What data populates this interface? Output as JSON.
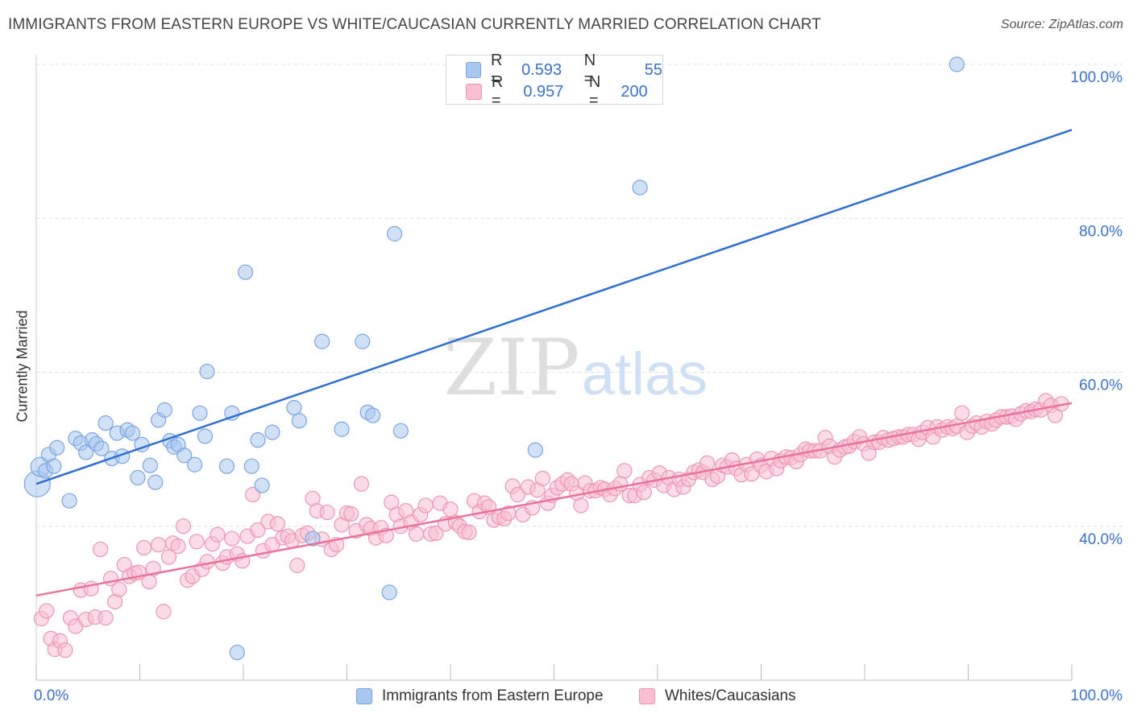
{
  "header": {
    "title": "IMMIGRANTS FROM EASTERN EUROPE VS WHITE/CAUCASIAN CURRENTLY MARRIED CORRELATION CHART",
    "source": "Source: ZipAtlas.com"
  },
  "watermark": {
    "zip": "ZIP",
    "atlas": "atlas"
  },
  "stats": [
    {
      "r_label": "R =",
      "r_value": "0.593",
      "n_label": "N =",
      "n_value": "55",
      "color": "#8fb4e8"
    },
    {
      "r_label": "R =",
      "r_value": "0.957",
      "n_label": "N =",
      "n_value": "200",
      "color": "#f4a7c0"
    }
  ],
  "colors": {
    "blue_fill": "#a9c6ef",
    "blue_stroke": "#7aa5e0",
    "blue_line": "#2f6fd1",
    "pink_fill": "#f8bfd2",
    "pink_stroke": "#ee95b3",
    "pink_line": "#e8739d",
    "tick_label": "#3a73c9",
    "grid": "#dddddd"
  },
  "chart_data": {
    "type": "scatter",
    "title": "IMMIGRANTS FROM EASTERN EUROPE VS WHITE/CAUCASIAN CURRENTLY MARRIED CORRELATION CHART",
    "xlabel": "",
    "ylabel": "Currently Married",
    "xlim": [
      0,
      100
    ],
    "ylim": [
      20,
      100
    ],
    "x_tick_labels": [
      "0.0%",
      "100.0%"
    ],
    "y_ticks": [
      40,
      60,
      80,
      100
    ],
    "y_tick_labels": [
      "40.0%",
      "60.0%",
      "80.0%",
      "100.0%"
    ],
    "grid": "horizontal dashed",
    "legend_position": "bottom",
    "series": [
      {
        "name": "Immigrants from Eastern Europe",
        "color": "#a9c6ef",
        "trend": [
          [
            0,
            45.5
          ],
          [
            100,
            91.5
          ]
        ],
        "points": [
          [
            0.1,
            45.5
          ],
          [
            0.4,
            47.7
          ],
          [
            0.9,
            47.2
          ],
          [
            1.2,
            49.3
          ],
          [
            1.7,
            47.8
          ],
          [
            2.0,
            50.2
          ],
          [
            3.2,
            43.3
          ],
          [
            3.8,
            51.4
          ],
          [
            4.3,
            50.8
          ],
          [
            4.8,
            49.6
          ],
          [
            5.4,
            51.2
          ],
          [
            5.8,
            50.7
          ],
          [
            6.3,
            50.1
          ],
          [
            6.7,
            53.4
          ],
          [
            7.3,
            48.8
          ],
          [
            7.8,
            52.1
          ],
          [
            8.3,
            49.1
          ],
          [
            8.8,
            52.5
          ],
          [
            9.3,
            52.1
          ],
          [
            9.8,
            46.3
          ],
          [
            10.2,
            50.6
          ],
          [
            11.0,
            47.9
          ],
          [
            11.5,
            45.7
          ],
          [
            11.8,
            53.8
          ],
          [
            12.4,
            55.1
          ],
          [
            12.9,
            51.1
          ],
          [
            13.3,
            50.3
          ],
          [
            13.7,
            50.6
          ],
          [
            14.3,
            49.2
          ],
          [
            15.3,
            48.0
          ],
          [
            15.8,
            54.7
          ],
          [
            16.3,
            51.7
          ],
          [
            16.5,
            60.1
          ],
          [
            18.4,
            47.8
          ],
          [
            18.9,
            54.7
          ],
          [
            19.4,
            23.6
          ],
          [
            20.2,
            73.0
          ],
          [
            20.8,
            47.8
          ],
          [
            21.4,
            51.2
          ],
          [
            21.8,
            45.3
          ],
          [
            22.8,
            52.2
          ],
          [
            24.9,
            55.4
          ],
          [
            25.4,
            53.7
          ],
          [
            26.7,
            38.4
          ],
          [
            27.6,
            64.0
          ],
          [
            29.5,
            52.6
          ],
          [
            31.5,
            64.0
          ],
          [
            32.0,
            54.8
          ],
          [
            32.5,
            54.4
          ],
          [
            34.1,
            31.4
          ],
          [
            34.6,
            78.0
          ],
          [
            35.2,
            52.4
          ],
          [
            48.2,
            49.9
          ],
          [
            58.3,
            84.0
          ],
          [
            88.9,
            100.0
          ]
        ]
      },
      {
        "name": "Whites/Caucasians",
        "color": "#f8bfd2",
        "trend": [
          [
            0,
            31.0
          ],
          [
            100,
            56.0
          ]
        ],
        "points": [
          [
            0.5,
            28.0
          ],
          [
            1.0,
            29.0
          ],
          [
            1.4,
            25.4
          ],
          [
            1.8,
            24.0
          ],
          [
            2.3,
            25.1
          ],
          [
            2.8,
            23.9
          ],
          [
            3.3,
            28.1
          ],
          [
            3.8,
            27.0
          ],
          [
            4.3,
            31.7
          ],
          [
            4.8,
            27.9
          ],
          [
            5.3,
            31.9
          ],
          [
            5.7,
            28.2
          ],
          [
            6.2,
            37.0
          ],
          [
            6.7,
            28.1
          ],
          [
            7.2,
            33.2
          ],
          [
            7.6,
            30.2
          ],
          [
            8.0,
            31.8
          ],
          [
            8.5,
            35.0
          ],
          [
            9.0,
            33.5
          ],
          [
            9.5,
            33.9
          ],
          [
            9.9,
            34.0
          ],
          [
            10.4,
            37.2
          ],
          [
            10.9,
            32.8
          ],
          [
            11.3,
            34.5
          ],
          [
            11.8,
            37.6
          ],
          [
            12.3,
            28.9
          ],
          [
            12.8,
            36.0
          ],
          [
            13.2,
            37.8
          ],
          [
            13.7,
            37.4
          ],
          [
            14.2,
            40.0
          ],
          [
            14.6,
            33.0
          ],
          [
            15.1,
            33.5
          ],
          [
            15.5,
            38.0
          ],
          [
            16.0,
            34.4
          ],
          [
            16.5,
            35.4
          ],
          [
            17.0,
            37.7
          ],
          [
            17.5,
            38.9
          ],
          [
            18.0,
            35.2
          ],
          [
            18.4,
            36.0
          ],
          [
            18.9,
            38.4
          ],
          [
            19.4,
            36.4
          ],
          [
            19.9,
            35.5
          ],
          [
            20.4,
            38.7
          ],
          [
            20.9,
            44.1
          ],
          [
            21.4,
            39.5
          ],
          [
            21.9,
            36.8
          ],
          [
            22.4,
            40.6
          ],
          [
            22.8,
            37.6
          ],
          [
            23.3,
            40.3
          ],
          [
            23.8,
            38.5
          ],
          [
            24.3,
            38.7
          ],
          [
            24.7,
            38.1
          ],
          [
            25.2,
            34.9
          ],
          [
            25.7,
            38.8
          ],
          [
            26.2,
            39.1
          ],
          [
            26.7,
            43.6
          ],
          [
            27.1,
            42.0
          ],
          [
            27.6,
            38.3
          ],
          [
            28.1,
            41.8
          ],
          [
            28.5,
            37.0
          ],
          [
            29.0,
            37.6
          ],
          [
            29.5,
            40.2
          ],
          [
            30.0,
            41.7
          ],
          [
            30.4,
            41.6
          ],
          [
            30.9,
            39.4
          ],
          [
            31.4,
            45.5
          ],
          [
            31.9,
            40.2
          ],
          [
            32.3,
            39.7
          ],
          [
            32.8,
            38.5
          ],
          [
            33.3,
            39.8
          ],
          [
            33.8,
            38.8
          ],
          [
            34.3,
            43.1
          ],
          [
            34.8,
            41.5
          ],
          [
            35.2,
            40.0
          ],
          [
            35.7,
            42.0
          ],
          [
            36.2,
            40.5
          ],
          [
            36.7,
            39.0
          ],
          [
            37.1,
            41.5
          ],
          [
            37.6,
            42.7
          ],
          [
            38.1,
            39.0
          ],
          [
            38.6,
            39.1
          ],
          [
            39.0,
            43.0
          ],
          [
            39.5,
            40.3
          ],
          [
            40.0,
            42.2
          ],
          [
            40.5,
            40.5
          ],
          [
            40.9,
            40.0
          ],
          [
            41.4,
            39.3
          ],
          [
            41.8,
            39.2
          ],
          [
            42.3,
            43.3
          ],
          [
            42.8,
            41.9
          ],
          [
            43.3,
            43.0
          ],
          [
            43.7,
            42.5
          ],
          [
            44.2,
            40.8
          ],
          [
            44.7,
            41.2
          ],
          [
            45.2,
            41.0
          ],
          [
            45.6,
            41.7
          ],
          [
            46.0,
            45.2
          ],
          [
            46.5,
            44.1
          ],
          [
            47.0,
            41.5
          ],
          [
            47.5,
            45.1
          ],
          [
            47.9,
            42.4
          ],
          [
            48.4,
            44.7
          ],
          [
            48.9,
            46.2
          ],
          [
            49.4,
            43.0
          ],
          [
            49.8,
            44.0
          ],
          [
            50.3,
            45.0
          ],
          [
            50.8,
            45.5
          ],
          [
            51.3,
            46.0
          ],
          [
            51.7,
            45.5
          ],
          [
            52.2,
            44.3
          ],
          [
            52.6,
            42.7
          ],
          [
            53.0,
            45.6
          ],
          [
            53.5,
            44.6
          ],
          [
            54.0,
            44.6
          ],
          [
            54.5,
            45.0
          ],
          [
            54.9,
            44.8
          ],
          [
            55.4,
            44.1
          ],
          [
            55.9,
            44.9
          ],
          [
            56.4,
            45.5
          ],
          [
            56.8,
            47.2
          ],
          [
            57.3,
            44.0
          ],
          [
            57.8,
            44.0
          ],
          [
            58.3,
            45.4
          ],
          [
            58.7,
            44.4
          ],
          [
            59.2,
            46.3
          ],
          [
            59.7,
            46.0
          ],
          [
            60.2,
            46.9
          ],
          [
            60.6,
            45.3
          ],
          [
            61.1,
            46.3
          ],
          [
            61.6,
            44.8
          ],
          [
            62.1,
            46.1
          ],
          [
            62.5,
            45.1
          ],
          [
            63.0,
            46.1
          ],
          [
            63.5,
            47.0
          ],
          [
            64.0,
            47.3
          ],
          [
            64.4,
            47.0
          ],
          [
            64.8,
            48.2
          ],
          [
            65.3,
            46.1
          ],
          [
            65.8,
            46.5
          ],
          [
            66.3,
            47.9
          ],
          [
            66.7,
            47.7
          ],
          [
            67.2,
            48.6
          ],
          [
            67.6,
            47.5
          ],
          [
            68.1,
            46.7
          ],
          [
            68.6,
            48.0
          ],
          [
            69.1,
            46.8
          ],
          [
            69.6,
            48.7
          ],
          [
            70.0,
            47.9
          ],
          [
            70.5,
            47.1
          ],
          [
            71.0,
            48.8
          ],
          [
            71.5,
            47.5
          ],
          [
            71.9,
            48.5
          ],
          [
            72.4,
            49.0
          ],
          [
            72.9,
            48.9
          ],
          [
            73.4,
            48.4
          ],
          [
            73.8,
            49.3
          ],
          [
            74.3,
            50.0
          ],
          [
            74.7,
            49.8
          ],
          [
            75.2,
            49.8
          ],
          [
            75.7,
            49.8
          ],
          [
            76.2,
            51.5
          ],
          [
            76.6,
            50.4
          ],
          [
            77.1,
            49.0
          ],
          [
            77.6,
            49.9
          ],
          [
            78.1,
            50.3
          ],
          [
            78.5,
            50.4
          ],
          [
            79.0,
            51.0
          ],
          [
            79.5,
            51.6
          ],
          [
            79.9,
            50.7
          ],
          [
            80.4,
            49.5
          ],
          [
            80.9,
            50.9
          ],
          [
            81.4,
            50.9
          ],
          [
            81.8,
            51.5
          ],
          [
            82.3,
            51.2
          ],
          [
            82.8,
            51.4
          ],
          [
            83.3,
            51.6
          ],
          [
            83.7,
            51.6
          ],
          [
            84.2,
            51.9
          ],
          [
            84.7,
            51.9
          ],
          [
            85.2,
            51.3
          ],
          [
            85.6,
            52.2
          ],
          [
            86.1,
            52.8
          ],
          [
            86.6,
            51.6
          ],
          [
            87.0,
            52.9
          ],
          [
            87.5,
            52.5
          ],
          [
            88.0,
            52.9
          ],
          [
            88.5,
            52.7
          ],
          [
            88.9,
            53.0
          ],
          [
            89.4,
            54.7
          ],
          [
            89.9,
            52.2
          ],
          [
            90.4,
            53.0
          ],
          [
            90.8,
            53.4
          ],
          [
            91.3,
            52.9
          ],
          [
            91.8,
            53.6
          ],
          [
            92.3,
            53.3
          ],
          [
            92.7,
            53.8
          ],
          [
            93.2,
            54.2
          ],
          [
            93.7,
            54.2
          ],
          [
            94.2,
            54.3
          ],
          [
            94.6,
            53.9
          ],
          [
            95.1,
            54.6
          ],
          [
            95.6,
            55.0
          ],
          [
            96.1,
            54.9
          ],
          [
            96.5,
            55.2
          ],
          [
            97.0,
            55.1
          ],
          [
            97.5,
            56.3
          ],
          [
            98.0,
            55.7
          ],
          [
            98.4,
            54.4
          ],
          [
            99.0,
            55.9
          ]
        ]
      }
    ]
  }
}
